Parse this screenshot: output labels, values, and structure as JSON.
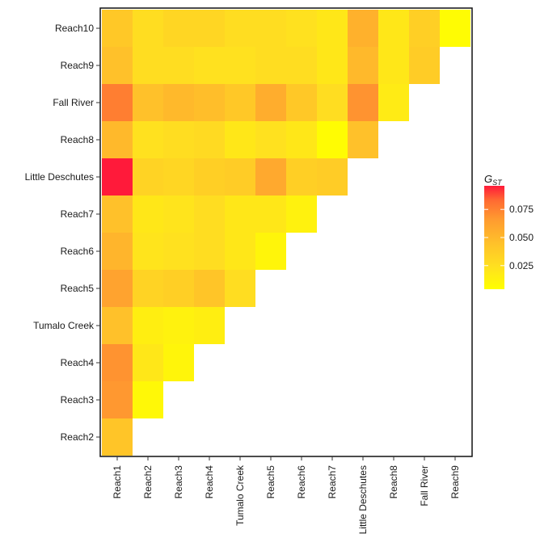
{
  "chart_data": {
    "type": "heatmap",
    "title": "",
    "xlabel": "",
    "ylabel": "",
    "x_categories": [
      "Reach1",
      "Reach2",
      "Reach3",
      "Reach4",
      "Tumalo Creek",
      "Reach5",
      "Reach6",
      "Reach7",
      "Little Deschutes",
      "Reach8",
      "Fall River",
      "Reach9"
    ],
    "y_categories": [
      "Reach2",
      "Reach3",
      "Reach4",
      "Tumalo Creek",
      "Reach5",
      "Reach6",
      "Reach7",
      "Little Deschutes",
      "Reach8",
      "Fall River",
      "Reach9",
      "Reach10"
    ],
    "values": [
      [
        0.038
      ],
      [
        0.06,
        0.008
      ],
      [
        0.062,
        0.018,
        0.01
      ],
      [
        0.04,
        0.014,
        0.012,
        0.014
      ],
      [
        0.055,
        0.03,
        0.032,
        0.038,
        0.024
      ],
      [
        0.046,
        0.02,
        0.022,
        0.024,
        0.018,
        0.01
      ],
      [
        0.04,
        0.018,
        0.02,
        0.024,
        0.018,
        0.018,
        0.012
      ],
      [
        0.096,
        0.03,
        0.028,
        0.032,
        0.034,
        0.052,
        0.032,
        0.034
      ],
      [
        0.044,
        0.022,
        0.024,
        0.026,
        0.018,
        0.022,
        0.018,
        0.006,
        0.04
      ],
      [
        0.07,
        0.04,
        0.044,
        0.042,
        0.036,
        0.05,
        0.036,
        0.024,
        0.062,
        0.016
      ],
      [
        0.04,
        0.024,
        0.024,
        0.022,
        0.022,
        0.024,
        0.024,
        0.018,
        0.044,
        0.018,
        0.034
      ],
      [
        0.036,
        0.024,
        0.028,
        0.028,
        0.024,
        0.024,
        0.022,
        0.018,
        0.048,
        0.018,
        0.032,
        0.006
      ]
    ],
    "legend": {
      "title": "G",
      "title_subscript": "ST",
      "ticks": [
        "0.075",
        "0.050",
        "0.025"
      ],
      "tick_values": [
        0.075,
        0.05,
        0.025
      ],
      "min": 0.004,
      "max": 0.096,
      "placement": "right"
    },
    "colorscale": [
      "#ffff00",
      "#ffe020",
      "#ffc02a",
      "#ff9a30",
      "#ff6a32",
      "#ff1a3a"
    ],
    "grid": false
  }
}
